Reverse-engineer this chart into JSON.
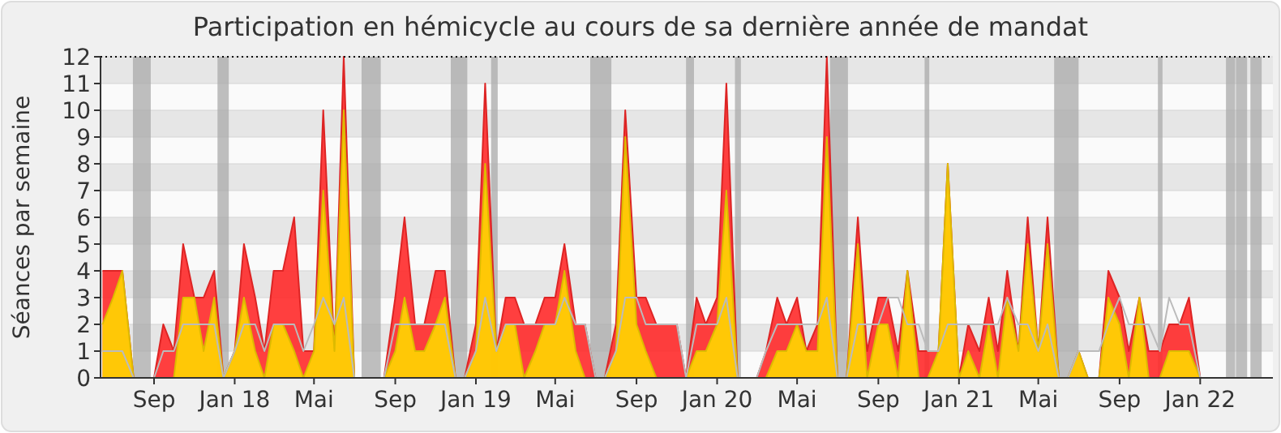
{
  "chart_data": {
    "type": "area",
    "title": "Participation en hémicycle au cours de sa dernière année de mandat",
    "ylabel": "Séances par semaine",
    "x": [
      "2017-06-15",
      "2017-07-01",
      "2017-07-15",
      "2017-08-01",
      "2017-08-15",
      "2017-09-01",
      "2017-09-15",
      "2017-10-01",
      "2017-10-15",
      "2017-11-01",
      "2017-11-15",
      "2017-12-01",
      "2017-12-15",
      "2018-01-01",
      "2018-01-15",
      "2018-02-01",
      "2018-02-15",
      "2018-03-01",
      "2018-03-15",
      "2018-04-01",
      "2018-04-15",
      "2018-05-01",
      "2018-05-15",
      "2018-06-01",
      "2018-06-15",
      "2018-07-01",
      "2018-07-15",
      "2018-08-01",
      "2018-08-15",
      "2018-09-01",
      "2018-09-15",
      "2018-10-01",
      "2018-10-15",
      "2018-11-01",
      "2018-11-15",
      "2018-12-01",
      "2018-12-15",
      "2019-01-01",
      "2019-01-15",
      "2019-02-01",
      "2019-02-15",
      "2019-03-01",
      "2019-03-15",
      "2019-04-01",
      "2019-04-15",
      "2019-05-01",
      "2019-05-15",
      "2019-06-01",
      "2019-06-15",
      "2019-07-01",
      "2019-07-15",
      "2019-08-01",
      "2019-08-15",
      "2019-09-01",
      "2019-09-15",
      "2019-10-01",
      "2019-10-15",
      "2019-11-01",
      "2019-11-15",
      "2019-12-01",
      "2019-12-15",
      "2020-01-01",
      "2020-01-15",
      "2020-02-01",
      "2020-02-15",
      "2020-03-01",
      "2020-03-15",
      "2020-04-01",
      "2020-04-15",
      "2020-05-01",
      "2020-05-15",
      "2020-06-01",
      "2020-06-15",
      "2020-07-01",
      "2020-07-15",
      "2020-08-01",
      "2020-08-15",
      "2020-09-01",
      "2020-09-15",
      "2020-10-01",
      "2020-10-15",
      "2020-11-01",
      "2020-11-15",
      "2020-12-01",
      "2020-12-15",
      "2021-01-01",
      "2021-01-15",
      "2021-02-01",
      "2021-02-15",
      "2021-03-01",
      "2021-03-15",
      "2021-04-01",
      "2021-04-15",
      "2021-05-01",
      "2021-05-15",
      "2021-06-01",
      "2021-06-15",
      "2021-07-01",
      "2021-07-15",
      "2021-08-01",
      "2021-08-15",
      "2021-09-01",
      "2021-09-15",
      "2021-10-01",
      "2021-10-15",
      "2021-11-01",
      "2021-11-15",
      "2021-12-01",
      "2021-12-15",
      "2022-01-01",
      "2022-01-15",
      "2022-02-01",
      "2022-02-15",
      "2022-03-01",
      "2022-03-15",
      "2022-04-01",
      "2022-04-15"
    ],
    "series": [
      {
        "color": "#ff2a2a",
        "values": [
          4,
          4,
          4,
          0,
          0,
          0,
          2,
          1,
          5,
          3,
          3,
          4,
          0,
          1,
          5,
          3,
          1,
          4,
          4,
          6,
          1,
          1,
          10,
          1,
          12,
          0,
          0,
          0,
          0,
          3,
          6,
          2,
          2,
          4,
          4,
          0,
          0,
          2,
          11,
          1,
          3,
          3,
          2,
          2,
          3,
          3,
          5,
          2,
          2,
          0,
          0,
          2,
          10,
          3,
          3,
          2,
          2,
          2,
          0,
          3,
          2,
          3,
          11,
          0,
          0,
          0,
          1,
          3,
          2,
          3,
          1,
          2,
          12,
          0,
          0,
          6,
          1,
          3,
          3,
          1,
          4,
          1,
          1,
          1,
          8,
          0,
          2,
          1,
          3,
          1,
          4,
          1,
          6,
          1,
          6,
          0,
          0,
          1,
          0,
          0,
          4,
          3,
          1,
          3,
          1,
          1,
          2,
          2,
          3,
          0,
          0,
          0,
          0,
          0,
          0,
          0,
          0
        ]
      },
      {
        "color": "#ffd700",
        "values": [
          2,
          3,
          4,
          0,
          0,
          0,
          0,
          0,
          3,
          3,
          1,
          3,
          0,
          1,
          3,
          1,
          0,
          2,
          2,
          1,
          0,
          1,
          7,
          1,
          10,
          0,
          0,
          0,
          0,
          1,
          3,
          1,
          1,
          2,
          3,
          0,
          0,
          1,
          8,
          1,
          2,
          2,
          0,
          1,
          2,
          2,
          4,
          1,
          0,
          0,
          0,
          1,
          9,
          2,
          1,
          0,
          0,
          0,
          0,
          1,
          1,
          2,
          7,
          0,
          0,
          0,
          0,
          1,
          1,
          2,
          1,
          1,
          9,
          0,
          0,
          5,
          0,
          2,
          2,
          0,
          4,
          0,
          0,
          1,
          8,
          0,
          1,
          0,
          2,
          0,
          3,
          1,
          5,
          1,
          5,
          0,
          0,
          1,
          0,
          0,
          3,
          2,
          0,
          3,
          0,
          0,
          1,
          1,
          1,
          0,
          0,
          0,
          0,
          0,
          0,
          0,
          0
        ]
      },
      {
        "type": "line",
        "color": "#bbbbbb",
        "values": [
          1,
          1,
          1,
          0,
          0,
          0,
          1,
          1,
          2,
          2,
          2,
          2,
          0,
          1,
          2,
          2,
          1,
          2,
          2,
          2,
          1,
          2,
          3,
          2,
          3,
          0,
          0,
          0,
          0,
          2,
          2,
          2,
          2,
          2,
          2,
          0,
          0,
          1,
          3,
          1,
          2,
          2,
          2,
          2,
          2,
          2,
          3,
          2,
          2,
          0,
          0,
          1,
          3,
          3,
          2,
          2,
          2,
          2,
          0,
          2,
          2,
          2,
          3,
          0,
          0,
          0,
          1,
          2,
          2,
          2,
          2,
          2,
          3,
          0,
          0,
          2,
          2,
          2,
          3,
          3,
          2,
          2,
          1,
          1,
          2,
          2,
          2,
          2,
          2,
          2,
          3,
          2,
          2,
          1,
          2,
          0,
          0,
          1,
          1,
          1,
          2,
          3,
          2,
          2,
          2,
          1,
          3,
          2,
          2,
          0,
          0,
          0,
          0,
          0,
          0,
          0,
          0
        ]
      }
    ],
    "xlim": [
      "2017-06-12",
      "2022-04-21"
    ],
    "xticks": [
      {
        "value": "2017-09-01",
        "label": "Sep"
      },
      {
        "value": "2018-01-01",
        "label": "Jan 18"
      },
      {
        "value": "2018-05-01",
        "label": "Mai"
      },
      {
        "value": "2018-09-01",
        "label": "Sep"
      },
      {
        "value": "2019-01-01",
        "label": "Jan 19"
      },
      {
        "value": "2019-05-01",
        "label": "Mai"
      },
      {
        "value": "2019-09-01",
        "label": "Sep"
      },
      {
        "value": "2020-01-01",
        "label": "Jan 20"
      },
      {
        "value": "2020-05-01",
        "label": "Mai"
      },
      {
        "value": "2020-09-01",
        "label": "Sep"
      },
      {
        "value": "2021-01-01",
        "label": "Jan 21"
      },
      {
        "value": "2021-05-01",
        "label": "Mai"
      },
      {
        "value": "2021-09-01",
        "label": "Sep"
      },
      {
        "value": "2022-01-01",
        "label": "Jan 22"
      }
    ],
    "ylim": [
      0,
      12
    ],
    "yticks": [
      0,
      1,
      2,
      3,
      4,
      5,
      6,
      7,
      8,
      9,
      10,
      11,
      12
    ],
    "grid": "y",
    "ref_lines": [
      {
        "axis": "y",
        "value": 12,
        "color": "#000000",
        "line_style": "dotted"
      }
    ],
    "bands": [
      {
        "axis": "x",
        "from": "2017-07-31",
        "to": "2017-08-27",
        "color": "#aaaaaa"
      },
      {
        "axis": "x",
        "from": "2017-12-06",
        "to": "2017-12-23",
        "color": "#aaaaaa"
      },
      {
        "axis": "x",
        "from": "2018-07-12",
        "to": "2018-08-10",
        "color": "#aaaaaa"
      },
      {
        "axis": "x",
        "from": "2018-11-24",
        "to": "2018-12-19",
        "color": "#aaaaaa"
      },
      {
        "axis": "x",
        "from": "2019-01-24",
        "to": "2019-02-03",
        "color": "#aaaaaa"
      },
      {
        "axis": "x",
        "from": "2019-06-23",
        "to": "2019-07-25",
        "color": "#aaaaaa"
      },
      {
        "axis": "x",
        "from": "2019-11-15",
        "to": "2019-11-27",
        "color": "#aaaaaa"
      },
      {
        "axis": "x",
        "from": "2020-01-28",
        "to": "2020-02-06",
        "color": "#aaaaaa"
      },
      {
        "axis": "x",
        "from": "2020-06-20",
        "to": "2020-07-17",
        "color": "#aaaaaa"
      },
      {
        "axis": "x",
        "from": "2020-11-10",
        "to": "2020-11-17",
        "color": "#aaaaaa"
      },
      {
        "axis": "x",
        "from": "2021-05-25",
        "to": "2021-07-01",
        "color": "#aaaaaa"
      },
      {
        "axis": "x",
        "from": "2021-10-29",
        "to": "2021-11-05",
        "color": "#aaaaaa"
      },
      {
        "axis": "x",
        "from": "2022-02-09",
        "to": "2022-02-23",
        "color": "#aaaaaa"
      },
      {
        "axis": "x",
        "from": "2022-02-24",
        "to": "2022-03-13",
        "color": "#aaaaaa"
      },
      {
        "axis": "x",
        "from": "2022-03-18",
        "to": "2022-04-04",
        "color": "#aaaaaa"
      }
    ]
  }
}
